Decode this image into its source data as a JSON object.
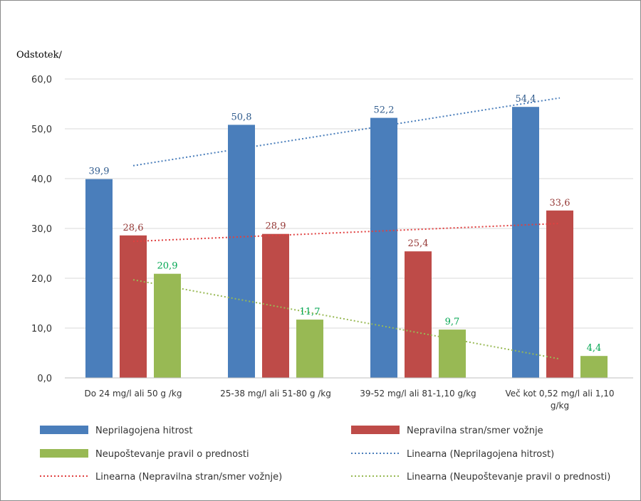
{
  "chart_data": {
    "type": "bar",
    "ylabel": "Odstotek/",
    "ylim": [
      0,
      60
    ],
    "yticks": [
      "0,0",
      "10,0",
      "20,0",
      "30,0",
      "40,0",
      "50,0",
      "60,0"
    ],
    "yticks_values": [
      0,
      10,
      20,
      30,
      40,
      50,
      60
    ],
    "grid": true,
    "legend_position": "bottom",
    "categories": [
      [
        "Do 24 mg/l ali 50 g /kg"
      ],
      [
        "25-38 mg/l ali 51-80 g /kg"
      ],
      [
        "39-52 mg/l ali 81-1,10 g/kg"
      ],
      [
        "Več kot 0,52 mg/l ali 1,10",
        "g/kg"
      ]
    ],
    "series": [
      {
        "name": "Neprilagojena hitrost",
        "color": "#4a7ebb",
        "label_color": "#2e5a8c",
        "values": [
          39.9,
          50.8,
          52.2,
          54.4
        ],
        "labels": [
          "39,9",
          "50,8",
          "52,2",
          "54,4"
        ]
      },
      {
        "name": "Nepravilna stran/smer vožnje",
        "color": "#be4b48",
        "label_color": "#943634",
        "values": [
          28.6,
          28.9,
          25.4,
          33.6
        ],
        "labels": [
          "28,6",
          "28,9",
          "25,4",
          "33,6"
        ]
      },
      {
        "name": "Neupoštevanje pravil o prednosti",
        "color": "#98b954",
        "label_color": "#00a651",
        "values": [
          20.9,
          11.7,
          9.7,
          4.4
        ],
        "labels": [
          "20,9",
          "11,7",
          "9,7",
          "4,4"
        ]
      }
    ],
    "trendlines": [
      {
        "name": "Linearna (Neprilagojena hitrost)",
        "color": "#4a7ebb",
        "start": 42.6,
        "end": 56.2
      },
      {
        "name": "Linearna (Nepravilna stran/smer vožnje)",
        "color": "#e04040",
        "start": 27.4,
        "end": 31.0
      },
      {
        "name": "Linearna (Neupoštevanje pravil o prednosti)",
        "color": "#98b954",
        "start": 19.7,
        "end": 3.8
      }
    ],
    "gridline_color": "#d9d9d9"
  }
}
